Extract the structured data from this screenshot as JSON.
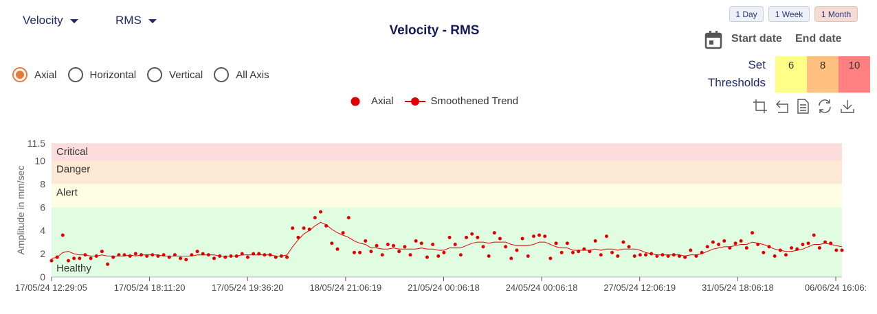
{
  "controls": {
    "metric": "Velocity",
    "stat": "RMS",
    "title": "Velocity - RMS",
    "ranges": [
      "1 Day",
      "1 Week",
      "1 Month"
    ],
    "active_range": "1 Month",
    "start_date_label": "Start date",
    "end_date_label": "End date",
    "axes": [
      {
        "label": "Axial",
        "selected": true
      },
      {
        "label": "Horizontal",
        "selected": false
      },
      {
        "label": "Vertical",
        "selected": false
      },
      {
        "label": "All Axis",
        "selected": false
      }
    ],
    "thresholds": {
      "label_line1": "Set",
      "label_line2": "Thresholds",
      "values": [
        "6",
        "8",
        "10"
      ],
      "colors": [
        "#ffff88",
        "#ffc080",
        "#ff8080"
      ]
    },
    "toolbar_icons": [
      "crop-icon",
      "undo-icon",
      "document-icon",
      "refresh-icon",
      "download-icon"
    ]
  },
  "legend": {
    "series": "Axial",
    "trend": "Smoothened Trend"
  },
  "chart_data": {
    "type": "scatter",
    "ylabel": "Amplitude in mm/sec",
    "ylim": [
      0,
      11.5
    ],
    "y_ticks": [
      "0",
      "2",
      "4",
      "6",
      "8",
      "10",
      "11.5"
    ],
    "x_ticks": [
      "17/05/24 12:29:05",
      "17/05/24 18:11:20",
      "17/05/24 19:36:20",
      "18/05/24 21:06:19",
      "21/05/24 00:06:18",
      "24/05/24 00:06:18",
      "27/05/24 12:06:19",
      "31/05/24 18:06:18",
      "06/06/24 16:06:"
    ],
    "bands": [
      {
        "label": "Healthy",
        "from": 0,
        "to": 6,
        "color": "#e1fde1"
      },
      {
        "label": "Alert",
        "from": 6,
        "to": 8,
        "color": "#fdfde1"
      },
      {
        "label": "Danger",
        "from": 8,
        "to": 10,
        "color": "#fde8d3"
      },
      {
        "label": "Critical",
        "from": 10,
        "to": 11.5,
        "color": "#fddcdc"
      }
    ],
    "series": [
      {
        "name": "Axial",
        "color": "#e00000",
        "values": [
          1.4,
          1.7,
          3.6,
          1.4,
          1.6,
          1.6,
          1.9,
          1.6,
          1.8,
          2.2,
          1.1,
          1.7,
          1.9,
          1.9,
          1.8,
          2.0,
          1.9,
          1.8,
          1.9,
          1.8,
          1.9,
          1.7,
          1.9,
          1.6,
          1.5,
          1.9,
          2.2,
          2.0,
          1.9,
          1.6,
          1.8,
          1.7,
          1.8,
          1.8,
          2.0,
          1.7,
          2.0,
          2.0,
          1.9,
          1.9,
          1.7,
          1.8,
          1.7,
          4.2,
          3.4,
          4.2,
          4.1,
          5.1,
          5.6,
          4.4,
          2.9,
          2.4,
          3.8,
          5.1,
          2.1,
          2.1,
          3.1,
          2.2,
          2.7,
          1.9,
          2.8,
          2.7,
          2.2,
          2.6,
          1.9,
          3.1,
          2.9,
          1.7,
          2.8,
          1.8,
          2.1,
          3.4,
          2.8,
          1.9,
          3.4,
          3.7,
          3.4,
          2.6,
          1.8,
          3.8,
          3.3,
          2.6,
          1.6,
          2.3,
          3.3,
          1.8,
          3.5,
          3.6,
          3.5,
          1.6,
          2.9,
          2.1,
          2.9,
          2.1,
          2.2,
          2.4,
          2.2,
          3.1,
          1.9,
          3.5,
          2.1,
          1.8,
          3.0,
          2.6,
          1.8,
          1.9,
          1.9,
          2.0,
          1.8,
          1.9,
          1.8,
          1.9,
          1.8,
          1.7,
          2.3,
          1.8,
          2.1,
          2.6,
          3.0,
          2.8,
          3.1,
          2.5,
          2.9,
          3.1,
          2.5,
          3.8,
          2.8,
          2.1,
          2.6,
          1.8,
          2.3,
          1.9,
          2.5,
          2.4,
          2.8,
          2.9,
          3.6,
          2.5,
          3.0,
          2.9,
          2.3,
          2.3
        ]
      },
      {
        "name": "Smoothened Trend",
        "color": "#e00000",
        "values": [
          1.6,
          1.7,
          2.1,
          2.2,
          2.0,
          1.9,
          1.9,
          1.8,
          1.8,
          1.9,
          1.8,
          1.8,
          1.8,
          1.8,
          1.9,
          1.8,
          1.9,
          1.9,
          1.9,
          1.9,
          1.8,
          1.8,
          1.8,
          1.8,
          1.8,
          1.8,
          1.9,
          1.9,
          1.9,
          1.9,
          1.8,
          1.8,
          1.8,
          1.8,
          1.9,
          1.9,
          1.9,
          1.9,
          1.9,
          1.9,
          1.8,
          1.8,
          1.9,
          2.6,
          3.2,
          3.7,
          4.0,
          4.4,
          4.7,
          4.5,
          4.1,
          3.8,
          3.6,
          3.4,
          3.1,
          2.9,
          2.8,
          2.5,
          2.5,
          2.4,
          2.4,
          2.5,
          2.4,
          2.4,
          2.4,
          2.4,
          2.5,
          2.4,
          2.4,
          2.3,
          2.3,
          2.5,
          2.5,
          2.5,
          2.7,
          2.9,
          3.0,
          3.0,
          2.9,
          3.0,
          3.0,
          3.0,
          2.8,
          2.7,
          2.7,
          2.7,
          2.8,
          3.0,
          3.0,
          2.8,
          2.6,
          2.5,
          2.5,
          2.3,
          2.3,
          2.3,
          2.3,
          2.4,
          2.3,
          2.4,
          2.4,
          2.3,
          2.4,
          2.4,
          2.4,
          2.3,
          2.1,
          2.0,
          1.9,
          1.9,
          1.9,
          1.9,
          1.9,
          1.8,
          1.9,
          1.9,
          2.0,
          2.2,
          2.4,
          2.5,
          2.6,
          2.6,
          2.7,
          2.8,
          2.8,
          3.0,
          2.9,
          2.8,
          2.6,
          2.4,
          2.3,
          2.2,
          2.2,
          2.3,
          2.4,
          2.6,
          2.8,
          2.8,
          2.9,
          2.8,
          2.7,
          2.6
        ]
      }
    ]
  }
}
